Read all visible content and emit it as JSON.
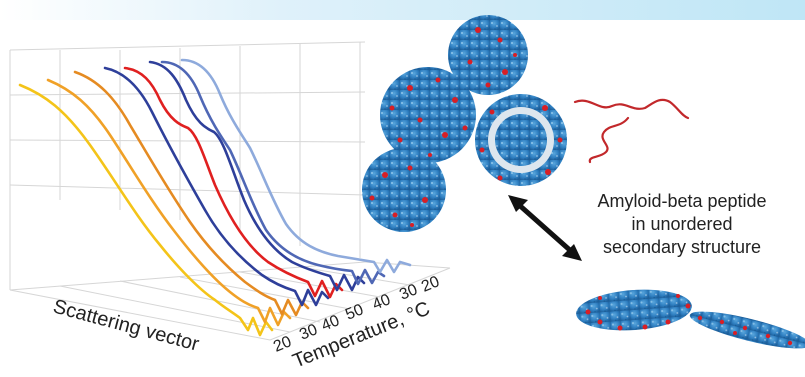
{
  "figure": {
    "xlabel": "Scattering vector",
    "zlabel": "Temperature, °C",
    "z_ticks_front": [
      "20",
      "30",
      "40",
      "50",
      "40",
      "30",
      "20"
    ],
    "series_colors": [
      "#f4c419",
      "#f0a127",
      "#e58b22",
      "#2e3f9a",
      "#e02020",
      "#2e3f9a",
      "#4f67b5",
      "#8eaadc"
    ]
  },
  "annotation": {
    "line1": "Amyloid-beta peptide",
    "line2": "in unordered",
    "line3": "secondary structure"
  },
  "colors": {
    "membrane_blue": "#2f7fc1",
    "peptide_red": "#d81f26",
    "arrow": "#111111"
  }
}
